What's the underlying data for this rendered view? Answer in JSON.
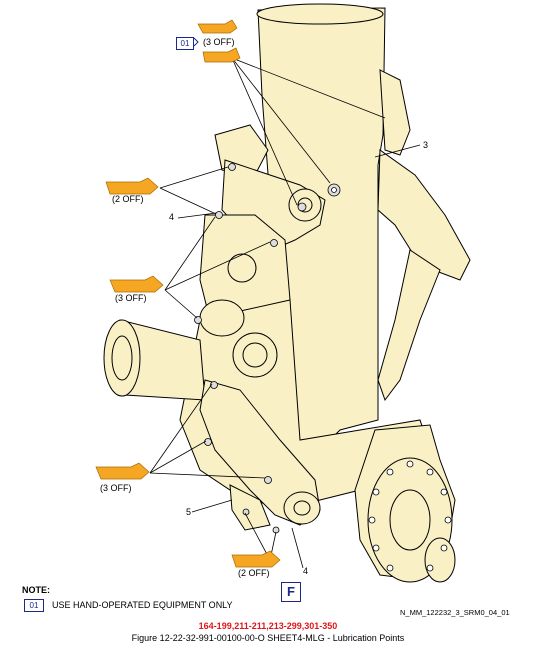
{
  "figure": {
    "caption": "Figure 12-22-32-991-00100-00-O SHEET4-MLG - Lubrication Points",
    "effectivity": "164-199,211-211,213-299,301-350",
    "reference_code": "N_MM_122232_3_SRM0_04_01",
    "frame_letter": "F"
  },
  "callouts": {
    "item_3": "3",
    "item_4_upper": "4",
    "item_4_lower": "4",
    "item_5": "5",
    "tag_01": "01",
    "off_3_top": "(3 OFF)",
    "off_2_upper": "(2 OFF)",
    "off_3_middle": "(3 OFF)",
    "off_3_lower": "(3 OFF)",
    "off_2_bottom": "(2 OFF)"
  },
  "note": {
    "title": "NOTE:",
    "tag": "01",
    "text": "USE HAND-OPERATED EQUIPMENT ONLY"
  },
  "colors": {
    "part_fill": "#f9f0c6",
    "grease_gun": "#f5a623",
    "tag_blue": "#1b2a8a",
    "effectivity_red": "#e0161b"
  }
}
